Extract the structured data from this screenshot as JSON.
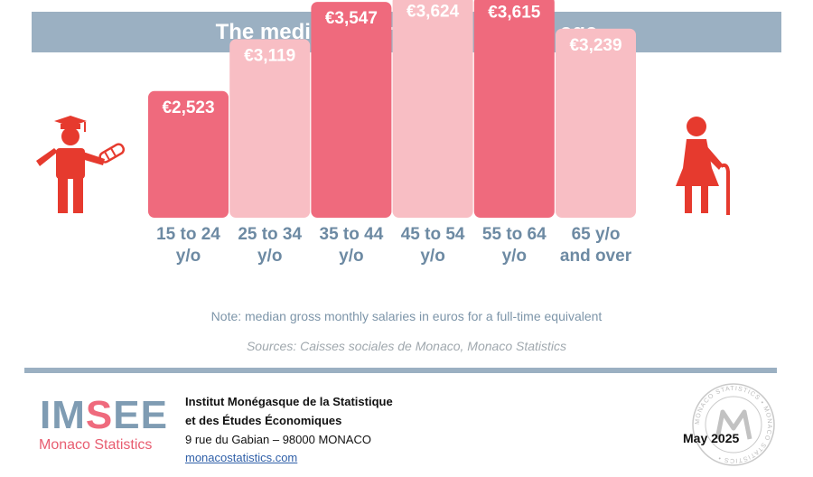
{
  "title": "The median salary levels off with age",
  "chart_data": {
    "type": "bar",
    "categories": [
      [
        "15 to 24",
        "y/o"
      ],
      [
        "25 to 34",
        "y/o"
      ],
      [
        "35 to 44",
        "y/o"
      ],
      [
        "45 to 54",
        "y/o"
      ],
      [
        "55 to 64",
        "y/o"
      ],
      [
        "65 y/o",
        "and over"
      ]
    ],
    "values": [
      2523,
      3119,
      3547,
      3624,
      3615,
      3239
    ],
    "value_labels": [
      "€2,523",
      "€3,119",
      "€3,547",
      "€3,624",
      "€3,615",
      "€3,239"
    ],
    "unit": "euros",
    "bar_colors": [
      "#ef6a7d",
      "#f8bec4",
      "#ef6a7d",
      "#f8bec4",
      "#ef6a7d",
      "#f8bec4"
    ]
  },
  "icons": [
    "graduate-icon",
    "elderly-person-icon"
  ],
  "colors": {
    "accent_red": "#ef6a7d",
    "light_pink": "#f8bec4",
    "slate_blue": "#9bb0c2",
    "label_blue": "#6d8aa3"
  },
  "note": "Note: median gross monthly salaries in euros for a full-time equivalent",
  "sources": "Sources: Caisses sociales de Monaco, Monaco Statistics",
  "footer": {
    "logo_left": "IM",
    "logo_accent": "S",
    "logo_right": "EE",
    "logo_sub": "Monaco Statistics",
    "institute_line1": "Institut Monégasque de la Statistique",
    "institute_line2": "et des Études Économiques",
    "address": "9 rue du Gabian – 98000 MONACO",
    "website": "monacostatistics.com",
    "date": "May 2025",
    "seal_text": "MONACO STATISTICS • MONACO STATISTICS •"
  }
}
